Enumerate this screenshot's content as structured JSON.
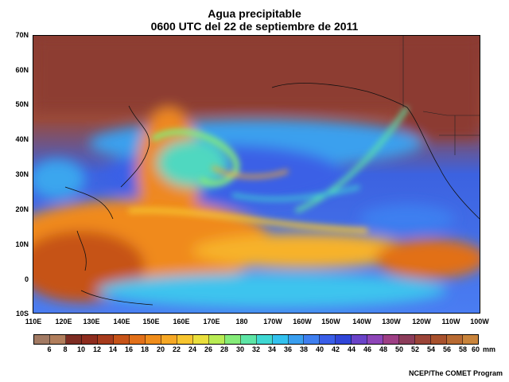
{
  "title_line1": "Agua precipitable",
  "title_line2": "0600 UTC del 22 de septiembre de 2011",
  "lat_labels": [
    "70N",
    "60N",
    "50N",
    "40N",
    "30N",
    "20N",
    "10N",
    "0",
    "10S"
  ],
  "lon_labels": [
    "110E",
    "120E",
    "130E",
    "140E",
    "150E",
    "160E",
    "170E",
    "180",
    "170W",
    "160W",
    "150W",
    "140W",
    "130W",
    "120W",
    "110W",
    "100W"
  ],
  "colorbar": {
    "values": [
      "6",
      "8",
      "10",
      "12",
      "14",
      "16",
      "18",
      "20",
      "22",
      "24",
      "26",
      "28",
      "30",
      "32",
      "34",
      "36",
      "38",
      "40",
      "42",
      "44",
      "46",
      "48",
      "50",
      "52",
      "54",
      "56",
      "58",
      "60"
    ],
    "units": "mm",
    "colors": [
      "#a27a63",
      "#b17e5c",
      "#7d2c22",
      "#8e2c1e",
      "#a73b1c",
      "#c75318",
      "#e27019",
      "#f08d1b",
      "#f6a825",
      "#f7c52f",
      "#eadf3d",
      "#b9ec54",
      "#85ec79",
      "#5de5a6",
      "#3fd8d3",
      "#33c2ef",
      "#3a9ff0",
      "#3f7ff0",
      "#3a5ee8",
      "#3045d8",
      "#6a43c9",
      "#8e45b8",
      "#9e3f85",
      "#8c3c5a",
      "#9b4438",
      "#a8512d",
      "#b86a32",
      "#c9843b"
    ]
  },
  "credit": "NCEP/The COMET Program"
}
